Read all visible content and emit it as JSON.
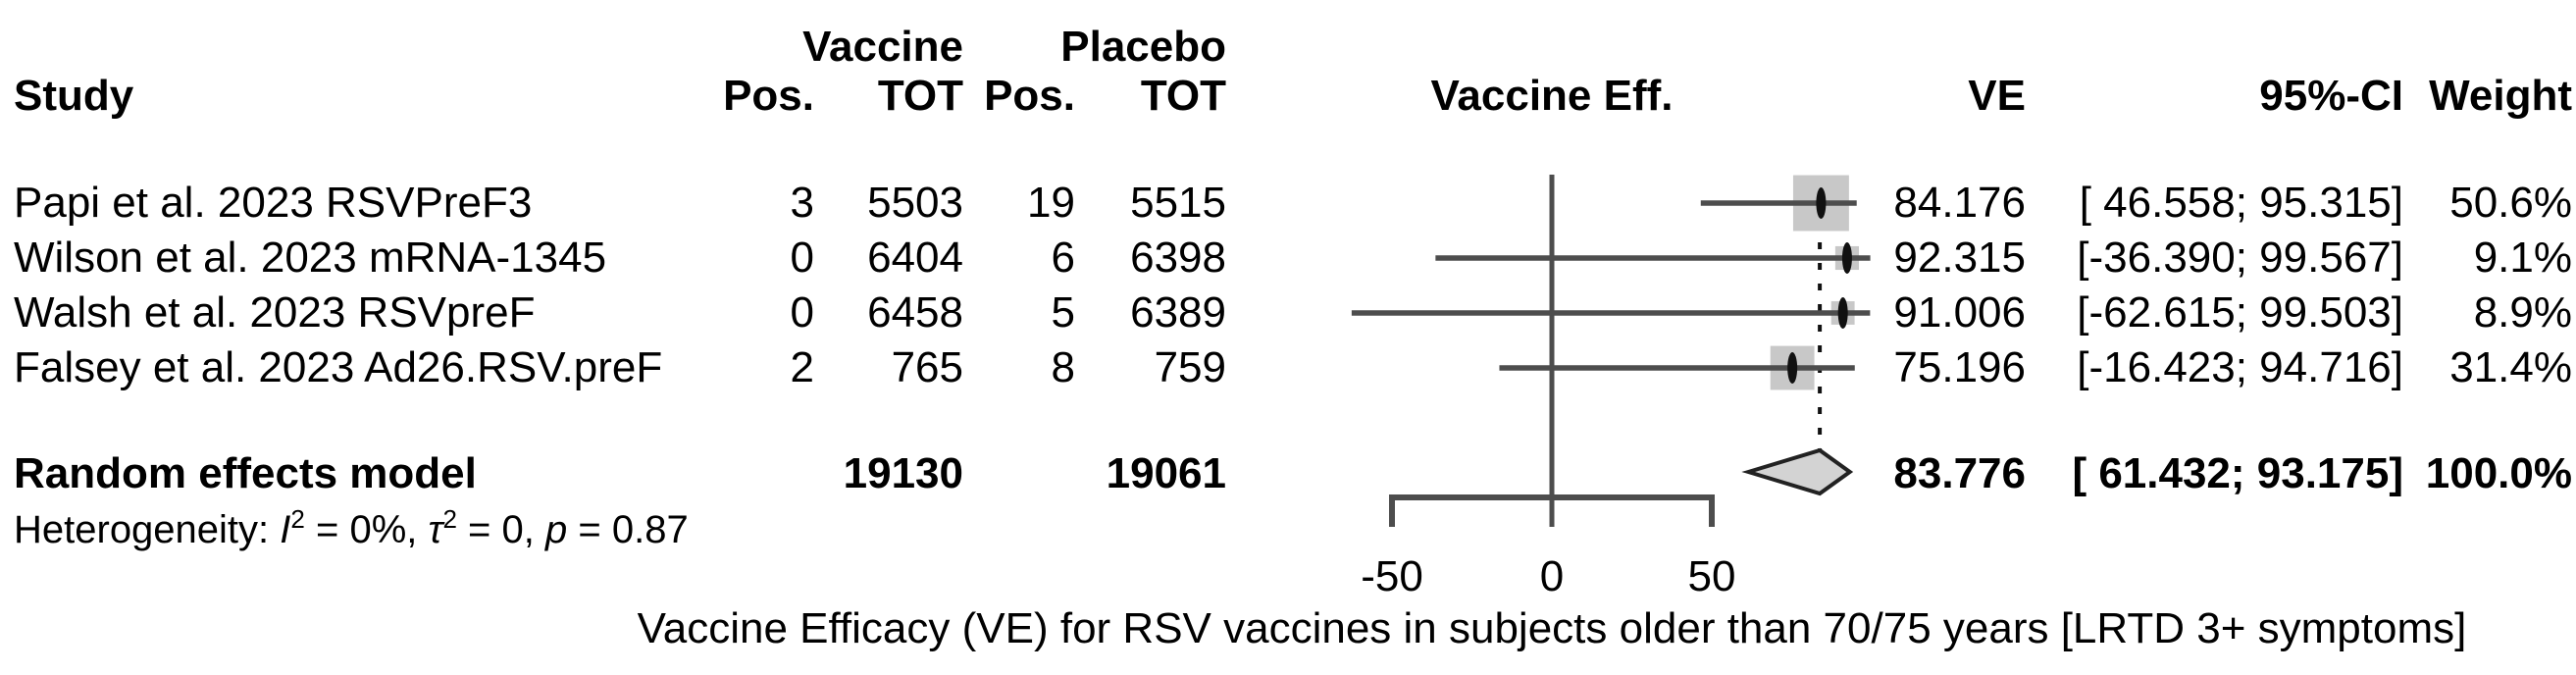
{
  "chart_data": {
    "type": "forest",
    "caption": "Vaccine Efficacy (VE) for RSV vaccines in subjects older than 70/75 years [LRTD 3+ symptoms]",
    "columns": {
      "study": "Study",
      "group_vaccine": "Vaccine",
      "group_placebo": "Placebo",
      "pos_vaccine": "Pos.",
      "tot_vaccine": "TOT",
      "pos_placebo": "Pos.",
      "tot_placebo": "TOT",
      "effect_plot": "Vaccine Eff.",
      "ve": "VE",
      "ci": "95%-CI",
      "weight": "Weight"
    },
    "x_axis": {
      "ticks": [
        -50,
        0,
        50
      ],
      "tick_labels": [
        "-50",
        "0",
        "50"
      ]
    },
    "studies": [
      {
        "study": "Papi et al. 2023 RSVPreF3",
        "vaccine_pos": "3",
        "vaccine_tot": "5503",
        "placebo_pos": "19",
        "placebo_tot": "5515",
        "ve": 84.176,
        "ci_low": 46.558,
        "ci_high": 95.315,
        "ve_label": "84.176",
        "ci_label": "[ 46.558; 95.315]",
        "weight": 50.6,
        "weight_label": "50.6%"
      },
      {
        "study": "Wilson et al. 2023 mRNA-1345",
        "vaccine_pos": "0",
        "vaccine_tot": "6404",
        "placebo_pos": "6",
        "placebo_tot": "6398",
        "ve": 92.315,
        "ci_low": -36.39,
        "ci_high": 99.567,
        "ve_label": "92.315",
        "ci_label": "[-36.390; 99.567]",
        "weight": 9.1,
        "weight_label": "9.1%"
      },
      {
        "study": "Walsh et al. 2023 RSVpreF",
        "vaccine_pos": "0",
        "vaccine_tot": "6458",
        "placebo_pos": "5",
        "placebo_tot": "6389",
        "ve": 91.006,
        "ci_low": -62.615,
        "ci_high": 99.503,
        "ve_label": "91.006",
        "ci_label": "[-62.615; 99.503]",
        "weight": 8.9,
        "weight_label": "8.9%"
      },
      {
        "study": "Falsey et al. 2023 Ad26.RSV.preF",
        "vaccine_pos": "2",
        "vaccine_tot": "765",
        "placebo_pos": "8",
        "placebo_tot": "759",
        "ve": 75.196,
        "ci_low": -16.423,
        "ci_high": 94.716,
        "ve_label": "75.196",
        "ci_label": "[-16.423; 94.716]",
        "weight": 31.4,
        "weight_label": "31.4%"
      }
    ],
    "summary": {
      "label": "Random effects model",
      "vaccine_tot": "19130",
      "placebo_tot": "19061",
      "ve": 83.776,
      "ci_low": 61.432,
      "ci_high": 93.175,
      "ve_label": "83.776",
      "ci_label": "[ 61.432; 93.175]",
      "weight_label": "100.0%"
    },
    "heterogeneity": {
      "plain": "Heterogeneity: I2 = 0%, τ2 = 0, p = 0.87",
      "parts": [
        {
          "text": "Heterogeneity: "
        },
        {
          "text": "I",
          "italic": true
        },
        {
          "text": "2",
          "sup": true
        },
        {
          "text": " = 0%, "
        },
        {
          "text": "τ",
          "italic": true
        },
        {
          "text": "2",
          "sup": true
        },
        {
          "text": " = 0, "
        },
        {
          "text": "p",
          "italic": true
        },
        {
          "text": " = 0.87"
        }
      ]
    },
    "colors": {
      "text": "#000000",
      "line": "#4d4d4d",
      "square": "#c8c8c8",
      "marker": "#111111",
      "diamond_fill": "#d3d3d3",
      "diamond_stroke": "#222222"
    }
  }
}
